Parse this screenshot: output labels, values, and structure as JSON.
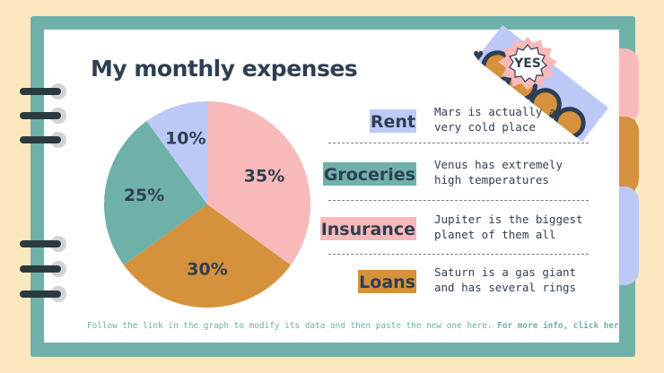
{
  "slide": {
    "title": "My monthly expenses",
    "badge": "YES",
    "footer_text": "Follow the link in the graph to modify its data and then paste the new one here.",
    "footer_link": "For more info, click here"
  },
  "colors": {
    "rent": "#bcc9f7",
    "groceries": "#6fb1a9",
    "insurance": "#f7b9b9",
    "loans": "#d5913b",
    "text": "#2f3f52"
  },
  "legend": [
    {
      "name": "Rent",
      "desc_line1": "Mars is actually a",
      "desc_line2": "very cold place",
      "color": "#bcc9f7"
    },
    {
      "name": "Groceries",
      "desc_line1": "Venus has extremely",
      "desc_line2": "high temperatures",
      "color": "#6fb1a9"
    },
    {
      "name": "Insurance",
      "desc_line1": "Jupiter is the biggest",
      "desc_line2": "planet of them all",
      "color": "#f7b9b9"
    },
    {
      "name": "Loans",
      "desc_line1": "Saturn is a gas giant",
      "desc_line2": "and has several rings",
      "color": "#d5913b"
    }
  ],
  "chart_data": {
    "type": "pie",
    "title": "",
    "slices": [
      {
        "value": 35,
        "label": "35%",
        "color": "#f7b9b9"
      },
      {
        "value": 30,
        "label": "30%",
        "color": "#d5913b"
      },
      {
        "value": 25,
        "label": "25%",
        "color": "#6fb1a9"
      },
      {
        "value": 10,
        "label": "10%",
        "color": "#bcc9f7"
      }
    ],
    "start": "top",
    "direction": "clockwise"
  }
}
